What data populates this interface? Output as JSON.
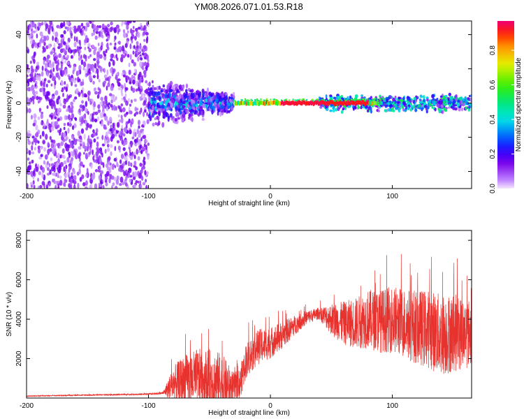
{
  "figure": {
    "title": "YM08.2026.071.01.53.R18"
  },
  "chart_data": [
    {
      "type": "heatmap",
      "title": "YM08.2026.071.01.53.R18",
      "xlabel": "Height of straight line (km)",
      "ylabel": "Frequency (Hz)",
      "xlim": [
        -200,
        165
      ],
      "ylim": [
        -50,
        48
      ],
      "xticks": [
        -200,
        -100,
        0,
        100
      ],
      "yticks": [
        -40,
        -20,
        0,
        20,
        40
      ],
      "colorbar": {
        "label": "Normalized spectral amplitude",
        "range": [
          0,
          0.97
        ],
        "ticks": [
          0.0,
          0.2,
          0.4,
          0.6,
          0.8
        ]
      },
      "regions": [
        {
          "x_from": -200,
          "x_to": -100,
          "description_value": "broadband low amplitude",
          "amplitude_max": 0.15
        },
        {
          "x_from": -100,
          "x_to": -30,
          "freq_spread_hz": 12,
          "amplitude_max": 0.45
        },
        {
          "x_from": -30,
          "x_to": 90,
          "freq_center_hz": 0,
          "amplitude_max": 0.95
        },
        {
          "x_from": 90,
          "x_to": 165,
          "freq_spread_hz": 5,
          "amplitude_max": 0.5
        }
      ]
    },
    {
      "type": "line",
      "xlabel": "Height of straight line (km)",
      "ylabel": "SNR (10 * v/v)",
      "xlim": [
        -200,
        165
      ],
      "ylim": [
        0,
        8500
      ],
      "xticks": [
        -200,
        -100,
        0,
        100
      ],
      "yticks": [
        2000,
        4000,
        6000,
        8000
      ],
      "color": "#e8322e",
      "series": [
        {
          "name": "SNR",
          "x": [
            -200,
            -150,
            -100,
            -88,
            -80,
            -70,
            -60,
            -50,
            -40,
            -30,
            -25,
            -20,
            -10,
            0,
            10,
            20,
            30,
            40,
            50,
            60,
            70,
            80,
            90,
            100,
            110,
            120,
            130,
            140,
            150,
            160,
            165
          ],
          "center": [
            100,
            150,
            200,
            250,
            700,
            900,
            1000,
            900,
            800,
            500,
            700,
            1900,
            2600,
            2800,
            3200,
            3700,
            4100,
            4300,
            4000,
            3800,
            3800,
            4000,
            3900,
            4000,
            3800,
            3600,
            3500,
            3200,
            3300,
            3300,
            3300
          ],
          "spread": [
            20,
            30,
            40,
            60,
            900,
            1300,
            1500,
            1600,
            1500,
            800,
            800,
            900,
            900,
            800,
            700,
            500,
            350,
            300,
            800,
            1100,
            1300,
            1500,
            1600,
            1700,
            1800,
            1900,
            2000,
            2100,
            2000,
            1800,
            1700
          ]
        }
      ]
    }
  ]
}
